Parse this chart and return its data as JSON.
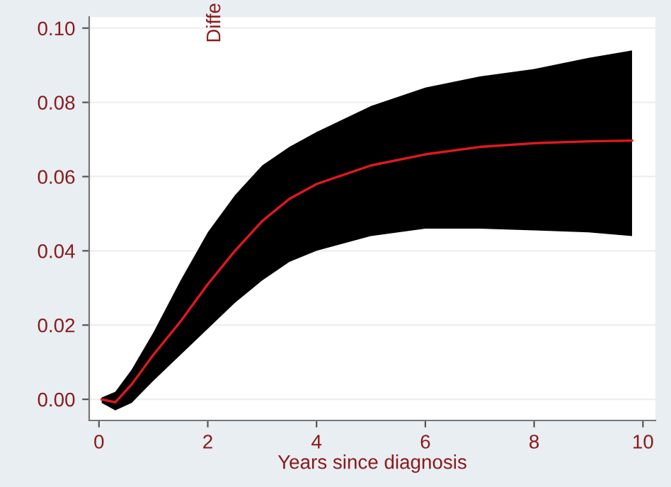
{
  "chart_data": {
    "type": "line",
    "ylabel": "Diffe",
    "xlabel": "Years since diagnosis",
    "x": [
      0.05,
      0.3,
      0.6,
      1,
      1.5,
      2,
      2.5,
      3,
      3.5,
      4,
      5,
      6,
      7,
      8,
      9,
      9.8
    ],
    "series": [
      {
        "color": "#e0191e",
        "values": [
          0,
          -0.0008,
          0.004,
          0.012,
          0.021,
          0.031,
          0.04,
          0.048,
          0.054,
          0.058,
          0.063,
          0.066,
          0.068,
          0.069,
          0.0695,
          0.0697
        ],
        "lower": [
          -0.001,
          -0.003,
          -0.001,
          0.005,
          0.012,
          0.019,
          0.026,
          0.032,
          0.037,
          0.04,
          0.044,
          0.046,
          0.046,
          0.0455,
          0.045,
          0.044
        ],
        "upper": [
          0.0005,
          0.002,
          0.008,
          0.018,
          0.032,
          0.045,
          0.055,
          0.063,
          0.068,
          0.072,
          0.079,
          0.084,
          0.087,
          0.089,
          0.092,
          0.094
        ]
      }
    ],
    "xlim": [
      -0.18,
      10.23
    ],
    "ylim": [
      -0.0057,
      0.103
    ],
    "xticks": [
      0,
      2,
      4,
      6,
      8,
      10
    ],
    "yticks": [
      {
        "value": 0,
        "label": "0.00"
      },
      {
        "value": 0.02,
        "label": "0.02"
      },
      {
        "value": 0.04,
        "label": "0.04"
      },
      {
        "value": 0.06,
        "label": "0.06"
      },
      {
        "value": 0.08,
        "label": "0.08"
      },
      {
        "value": 0.1,
        "label": "0.10"
      }
    ],
    "grid": "y",
    "legend": false,
    "marker": "none",
    "line_style": "solid"
  }
}
